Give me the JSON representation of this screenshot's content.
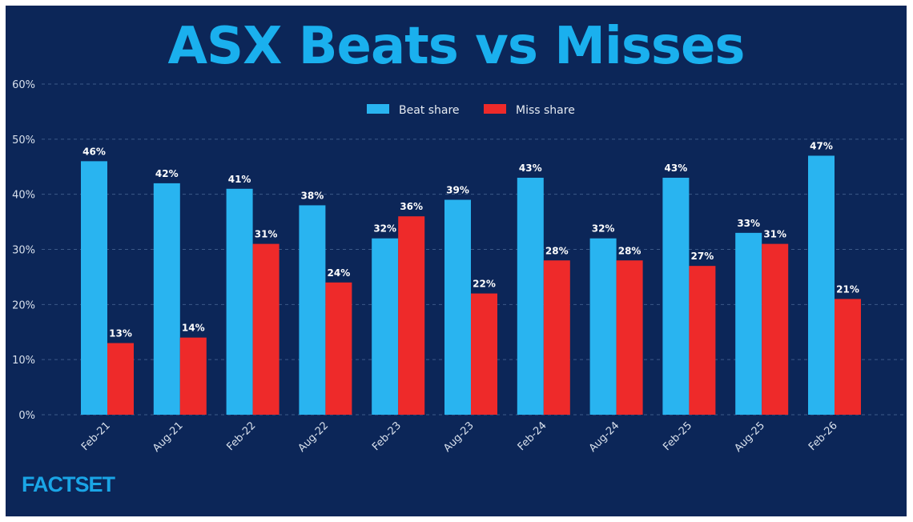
{
  "chart_data": {
    "type": "bar",
    "title": "ASX Beats vs Misses",
    "categories": [
      "Feb-21",
      "Aug-21",
      "Feb-22",
      "Aug-22",
      "Feb-23",
      "Aug-23",
      "Feb-24",
      "Aug-24",
      "Feb-25",
      "Aug-25",
      "Feb-26"
    ],
    "series": [
      {
        "name": "Beat share",
        "color": "#29b4f0",
        "values": [
          46,
          42,
          41,
          38,
          32,
          39,
          43,
          32,
          43,
          33,
          47
        ]
      },
      {
        "name": "Miss share",
        "color": "#ee2a2a",
        "values": [
          13,
          14,
          31,
          24,
          36,
          22,
          28,
          28,
          27,
          31,
          21
        ]
      }
    ],
    "ylim": [
      0,
      60
    ],
    "yticks": [
      0,
      10,
      20,
      30,
      40,
      50,
      60
    ],
    "ytick_format": "%",
    "grid": true,
    "legend": "top-center",
    "data_labels": true
  },
  "branding": {
    "logo": "FACTSET"
  },
  "colors": {
    "background": "#0c2658",
    "title": "#1ab0ee"
  }
}
